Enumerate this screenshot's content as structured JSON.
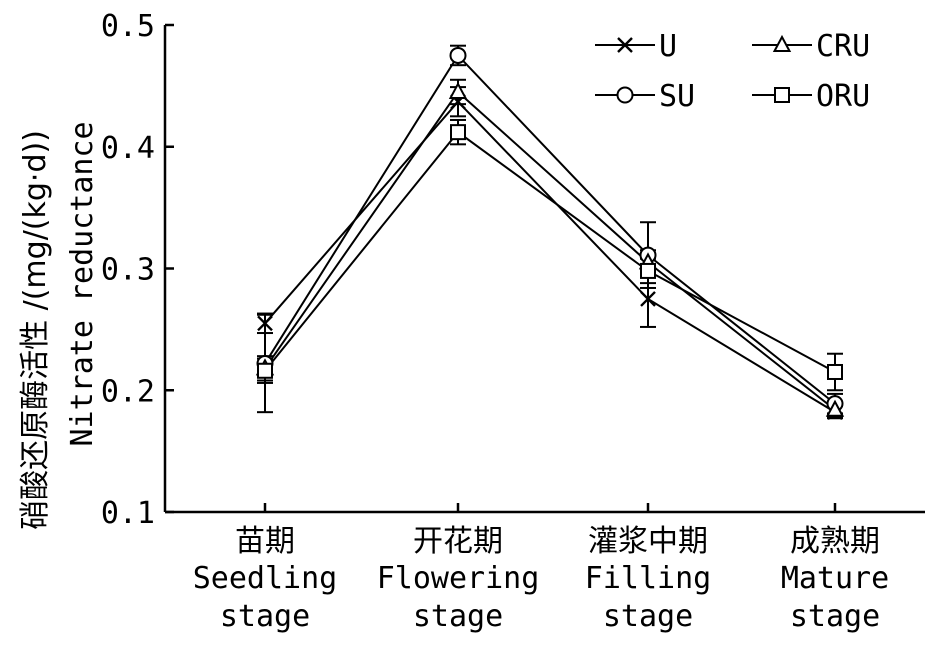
{
  "chart_data": {
    "type": "line",
    "categories": [
      {
        "cn": "苗期",
        "en1": "Seedling",
        "en2": "stage"
      },
      {
        "cn": "开花期",
        "en1": "Flowering",
        "en2": "stage"
      },
      {
        "cn": "灌浆中期",
        "en1": "Filling",
        "en2": "stage"
      },
      {
        "cn": "成熟期",
        "en1": "Mature",
        "en2": "stage"
      }
    ],
    "ylabel_cn": "硝酸还原酶活性 /(mg/(kg·d))",
    "ylabel_en": "Nitrate reductance",
    "ylim": [
      0.1,
      0.5
    ],
    "yticks": [
      "0.1",
      "0.2",
      "0.3",
      "0.4",
      "0.5"
    ],
    "grid": false,
    "legend_position": "top-right",
    "series": [
      {
        "name": "U",
        "marker": "x",
        "values": [
          0.255,
          0.437,
          0.275,
          0.182
        ],
        "errors": [
          0.008,
          0.012,
          0.023,
          0.005
        ]
      },
      {
        "name": "SU",
        "marker": "circle",
        "values": [
          0.222,
          0.475,
          0.311,
          0.189
        ],
        "errors": [
          0.04,
          0.008,
          0.027,
          0.008
        ]
      },
      {
        "name": "CRU",
        "marker": "triangle",
        "values": [
          0.218,
          0.445,
          0.305,
          0.184
        ],
        "errors": [
          0.01,
          0.01,
          0.01,
          0.006
        ]
      },
      {
        "name": "ORU",
        "marker": "square",
        "values": [
          0.216,
          0.412,
          0.298,
          0.215
        ],
        "errors": [
          0.01,
          0.01,
          0.01,
          0.015
        ]
      }
    ]
  }
}
